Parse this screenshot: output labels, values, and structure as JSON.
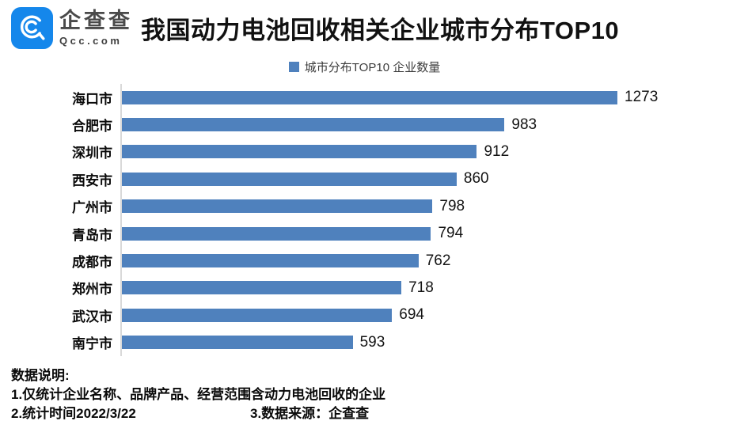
{
  "header": {
    "brand_cn": "企查查",
    "brand_domain": "Qcc.com",
    "brand_color": "#1587EB",
    "title": "我国动力电池回收相关企业城市分布TOP10"
  },
  "legend": {
    "label": "城市分布TOP10 企业数量",
    "marker_color": "#4F81BD"
  },
  "chart_data": {
    "type": "bar",
    "orientation": "horizontal",
    "title": "我国动力电池回收相关企业城市分布TOP10",
    "series_name": "城市分布TOP10 企业数量",
    "categories": [
      "海口市",
      "合肥市",
      "深圳市",
      "西安市",
      "广州市",
      "青岛市",
      "成都市",
      "郑州市",
      "武汉市",
      "南宁市"
    ],
    "values": [
      1273,
      983,
      912,
      860,
      798,
      794,
      762,
      718,
      694,
      593
    ],
    "bar_color": "#4F81BD",
    "xlim": [
      0,
      1273
    ],
    "value_labels": true,
    "grid": false,
    "legend_position": "top"
  },
  "footer": {
    "heading": "数据说明:",
    "note1": "1.仅统计企业名称、品牌产品、经营范围含动力电池回收的企业",
    "note2": "2.统计时间2022/3/22",
    "note3": "3.数据来源：企查查"
  }
}
